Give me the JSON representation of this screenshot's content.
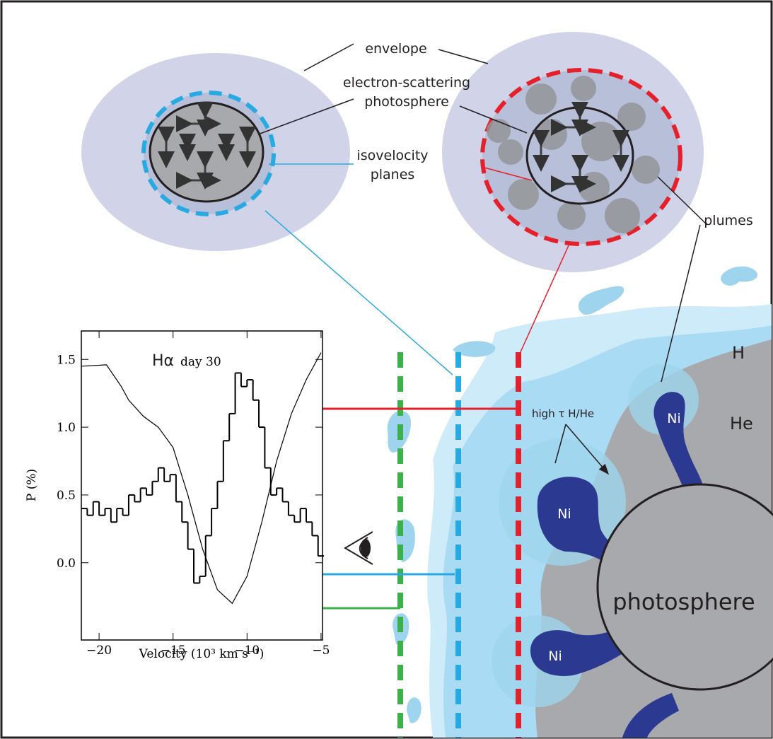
{
  "labels": {
    "envelope": "envelope",
    "es_line1": "electron-scattering",
    "es_line2": "photosphere",
    "iso_line1": "isovelocity",
    "iso_line2": "planes",
    "plumes": "plumes",
    "H": "H",
    "He": "He",
    "high_tau": "high τ H/He",
    "ni": [
      "Ni",
      "Ni",
      "Ni"
    ],
    "photosphere": "photosphere"
  },
  "chart_data": {
    "type": "line",
    "title": "Hα",
    "subtitle": "day 30",
    "x_label": "Velocity (10³ km s⁻¹)",
    "y_label": "P (%)",
    "xlim": [
      -21.2,
      -4.9
    ],
    "ylim": [
      -0.57,
      1.71
    ],
    "xticks": [
      {
        "value": -20,
        "label": "−20"
      },
      {
        "value": -15,
        "label": "−15"
      },
      {
        "value": -10,
        "label": "−10"
      },
      {
        "value": -5,
        "label": "−5"
      }
    ],
    "yticks": [
      {
        "value": 0,
        "label": "0.0"
      },
      {
        "value": 0.5,
        "label": "0.5"
      },
      {
        "value": 1,
        "label": "1.0"
      },
      {
        "value": 1.5,
        "label": "1.5"
      }
    ],
    "series": [
      {
        "color": "#000000",
        "style": "step",
        "x": [
          -21,
          -20.6,
          -20.2,
          -19.8,
          -19.4,
          -19,
          -18.6,
          -18.2,
          -17.8,
          -17.4,
          -17,
          -16.6,
          -16.2,
          -15.8,
          -15.4,
          -15,
          -14.6,
          -14.2,
          -13.8,
          -13.4,
          -13,
          -12.6,
          -12.2,
          -11.8,
          -11.4,
          -11,
          -10.6,
          -10.2,
          -9.8,
          -9.4,
          -9,
          -8.6,
          -8.2,
          -7.8,
          -7.4,
          -7,
          -6.6,
          -6.2,
          -5.8,
          -5.4,
          -5
        ],
        "values": [
          0.4,
          0.35,
          0.45,
          0.35,
          0.4,
          0.3,
          0.4,
          0.35,
          0.5,
          0.45,
          0.55,
          0.5,
          0.6,
          0.7,
          0.6,
          0.65,
          0.45,
          0.3,
          0.1,
          -0.15,
          -0.1,
          0.2,
          0.4,
          0.6,
          0.9,
          1.1,
          1.4,
          1.3,
          1.35,
          1.2,
          1.0,
          0.7,
          0.5,
          0.55,
          0.45,
          0.35,
          0.3,
          0.4,
          0.3,
          0.2,
          0.05
        ]
      },
      {
        "color": "#000000",
        "style": "line",
        "x": [
          -21.2,
          -19.5,
          -18.5,
          -18,
          -17,
          -16,
          -15,
          -14,
          -13,
          -12,
          -11,
          -10,
          -9,
          -8,
          -7,
          -6,
          -5
        ],
        "values": [
          1.45,
          1.46,
          1.3,
          1.2,
          1.08,
          1.0,
          0.85,
          0.5,
          0.1,
          -0.2,
          -0.3,
          -0.1,
          0.3,
          0.75,
          1.1,
          1.35,
          1.55
        ]
      }
    ]
  }
}
